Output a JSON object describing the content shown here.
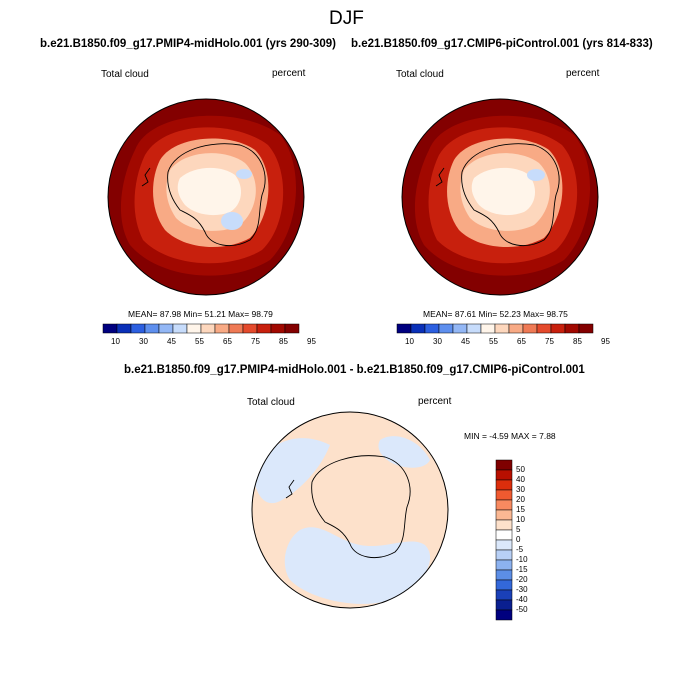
{
  "title": "DJF",
  "panels": [
    {
      "case_title": "b.e21.B1850.f09_g17.PMIP4-midHolo.001 (yrs 290-309)",
      "variable": "Total cloud",
      "units": "percent",
      "stats": "MEAN=  87.98  Min=  51.21  Max=  98.79"
    },
    {
      "case_title": "b.e21.B1850.f09_g17.CMIP6-piControl.001 (yrs 814-833)",
      "variable": "Total cloud",
      "units": "percent",
      "stats": "MEAN=  87.61  Min=  52.23  Max=  98.75"
    }
  ],
  "colorbar": {
    "labels": [
      "10",
      "30",
      "45",
      "55",
      "65",
      "75",
      "85",
      "95"
    ],
    "colors": [
      "#00007f",
      "#0a30b8",
      "#2c5fe0",
      "#5e8fee",
      "#93b7f5",
      "#c7dcfb",
      "#fff5ea",
      "#fdd7bd",
      "#f8aa85",
      "#ef7a55",
      "#e44a2c",
      "#c8200d",
      "#a10800",
      "#830000"
    ]
  },
  "diff_panel": {
    "title": "b.e21.B1850.f09_g17.PMIP4-midHolo.001 - b.e21.B1850.f09_g17.CMIP6-piControl.001",
    "variable": "Total cloud",
    "units": "percent",
    "stats": "MIN =  -4.59 MAX =   7.88",
    "colorbar_labels": [
      "50",
      "40",
      "30",
      "20",
      "15",
      "10",
      "5",
      "0",
      "-5",
      "-10",
      "-15",
      "-20",
      "-30",
      "-40",
      "-50"
    ],
    "colorbar_colors": [
      "#7f0000",
      "#b80f00",
      "#dc2e0c",
      "#f05a30",
      "#f88a60",
      "#fbb893",
      "#fde1cb",
      "#ffffff",
      "#dbe8fb",
      "#b8d0f6",
      "#8cb2f0",
      "#5c8ee6",
      "#3368da",
      "#1a40b8",
      "#0a1f90",
      "#00007f"
    ]
  },
  "colors": {
    "ocean_high": "#830000",
    "ring_2": "#a10800",
    "ring_3": "#c8200d",
    "ice_warm": "#f8aa85",
    "ice_light": "#fdd7bd",
    "ice_pale": "#fff5ea",
    "ice_blue": "#c7dcfb",
    "diff_pos": "#fde1cb",
    "diff_neg": "#dbe8fb"
  }
}
